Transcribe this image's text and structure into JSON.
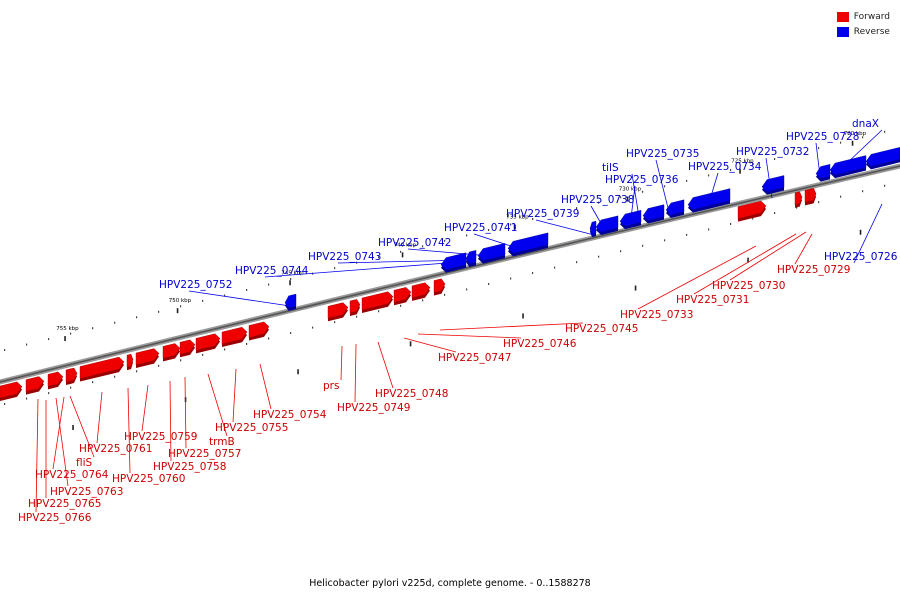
{
  "legend": {
    "forward_label": "Forward",
    "reverse_label": "Reverse",
    "forward_color": "#ee0000",
    "reverse_color": "#0000ee"
  },
  "caption": "Helicobacter pylori v225d, complete genome. - 0..1588278",
  "scale": {
    "start_bp": 757500,
    "end_bp": 717500,
    "ticks": [
      {
        "bp": 755000,
        "label": "755 kbp"
      },
      {
        "bp": 750000,
        "label": "750 kbp"
      },
      {
        "bp": 745000,
        "label": "745 kbp"
      },
      {
        "bp": 740000,
        "label": "740 kbp"
      },
      {
        "bp": 735000,
        "label": "735 kbp"
      },
      {
        "bp": 730000,
        "label": "730 kbp"
      },
      {
        "bp": 725000,
        "label": "725 kbp"
      },
      {
        "bp": 720000,
        "label": "720 kbp"
      }
    ]
  },
  "genes": [
    {
      "label": "HPV225_0766",
      "strand": "forward"
    },
    {
      "label": "HPV225_0765",
      "strand": "forward"
    },
    {
      "label": "HPV225_0763",
      "strand": "forward"
    },
    {
      "label": "HPV225_0764",
      "strand": "forward"
    },
    {
      "label": "fliS",
      "strand": "forward"
    },
    {
      "label": "HPV225_0761",
      "strand": "forward"
    },
    {
      "label": "HPV225_0760",
      "strand": "forward"
    },
    {
      "label": "HPV225_0759",
      "strand": "forward"
    },
    {
      "label": "HPV225_0758",
      "strand": "forward"
    },
    {
      "label": "HPV225_0757",
      "strand": "forward"
    },
    {
      "label": "trmB",
      "strand": "forward"
    },
    {
      "label": "HPV225_0755",
      "strand": "forward"
    },
    {
      "label": "HPV225_0754",
      "strand": "forward"
    },
    {
      "label": "HPV225_0752",
      "strand": "reverse"
    },
    {
      "label": "prs",
      "strand": "forward"
    },
    {
      "label": "HPV225_0749",
      "strand": "forward"
    },
    {
      "label": "HPV225_0748",
      "strand": "forward"
    },
    {
      "label": "HPV225_0747",
      "strand": "forward"
    },
    {
      "label": "HPV225_0746",
      "strand": "forward"
    },
    {
      "label": "HPV225_0745",
      "strand": "forward"
    },
    {
      "label": "HPV225_0744",
      "strand": "reverse"
    },
    {
      "label": "HPV225_0743",
      "strand": "reverse"
    },
    {
      "label": "HPV225_0742",
      "strand": "reverse"
    },
    {
      "label": "HPV225_0741",
      "strand": "reverse"
    },
    {
      "label": "HPV225_0739",
      "strand": "reverse"
    },
    {
      "label": "HPV225_0738",
      "strand": "reverse"
    },
    {
      "label": "HPV225_0736",
      "strand": "reverse"
    },
    {
      "label": "tilS",
      "strand": "reverse"
    },
    {
      "label": "HPV225_0735",
      "strand": "reverse"
    },
    {
      "label": "HPV225_0734",
      "strand": "reverse"
    },
    {
      "label": "HPV225_0733",
      "strand": "forward"
    },
    {
      "label": "HPV225_0732",
      "strand": "reverse"
    },
    {
      "label": "HPV225_0731",
      "strand": "forward"
    },
    {
      "label": "HPV225_0730",
      "strand": "forward"
    },
    {
      "label": "HPV225_0729",
      "strand": "forward"
    },
    {
      "label": "HPV225_0728",
      "strand": "reverse"
    },
    {
      "label": "dnaX",
      "strand": "reverse"
    },
    {
      "label": "HPV225_0726",
      "strand": "reverse"
    }
  ]
}
